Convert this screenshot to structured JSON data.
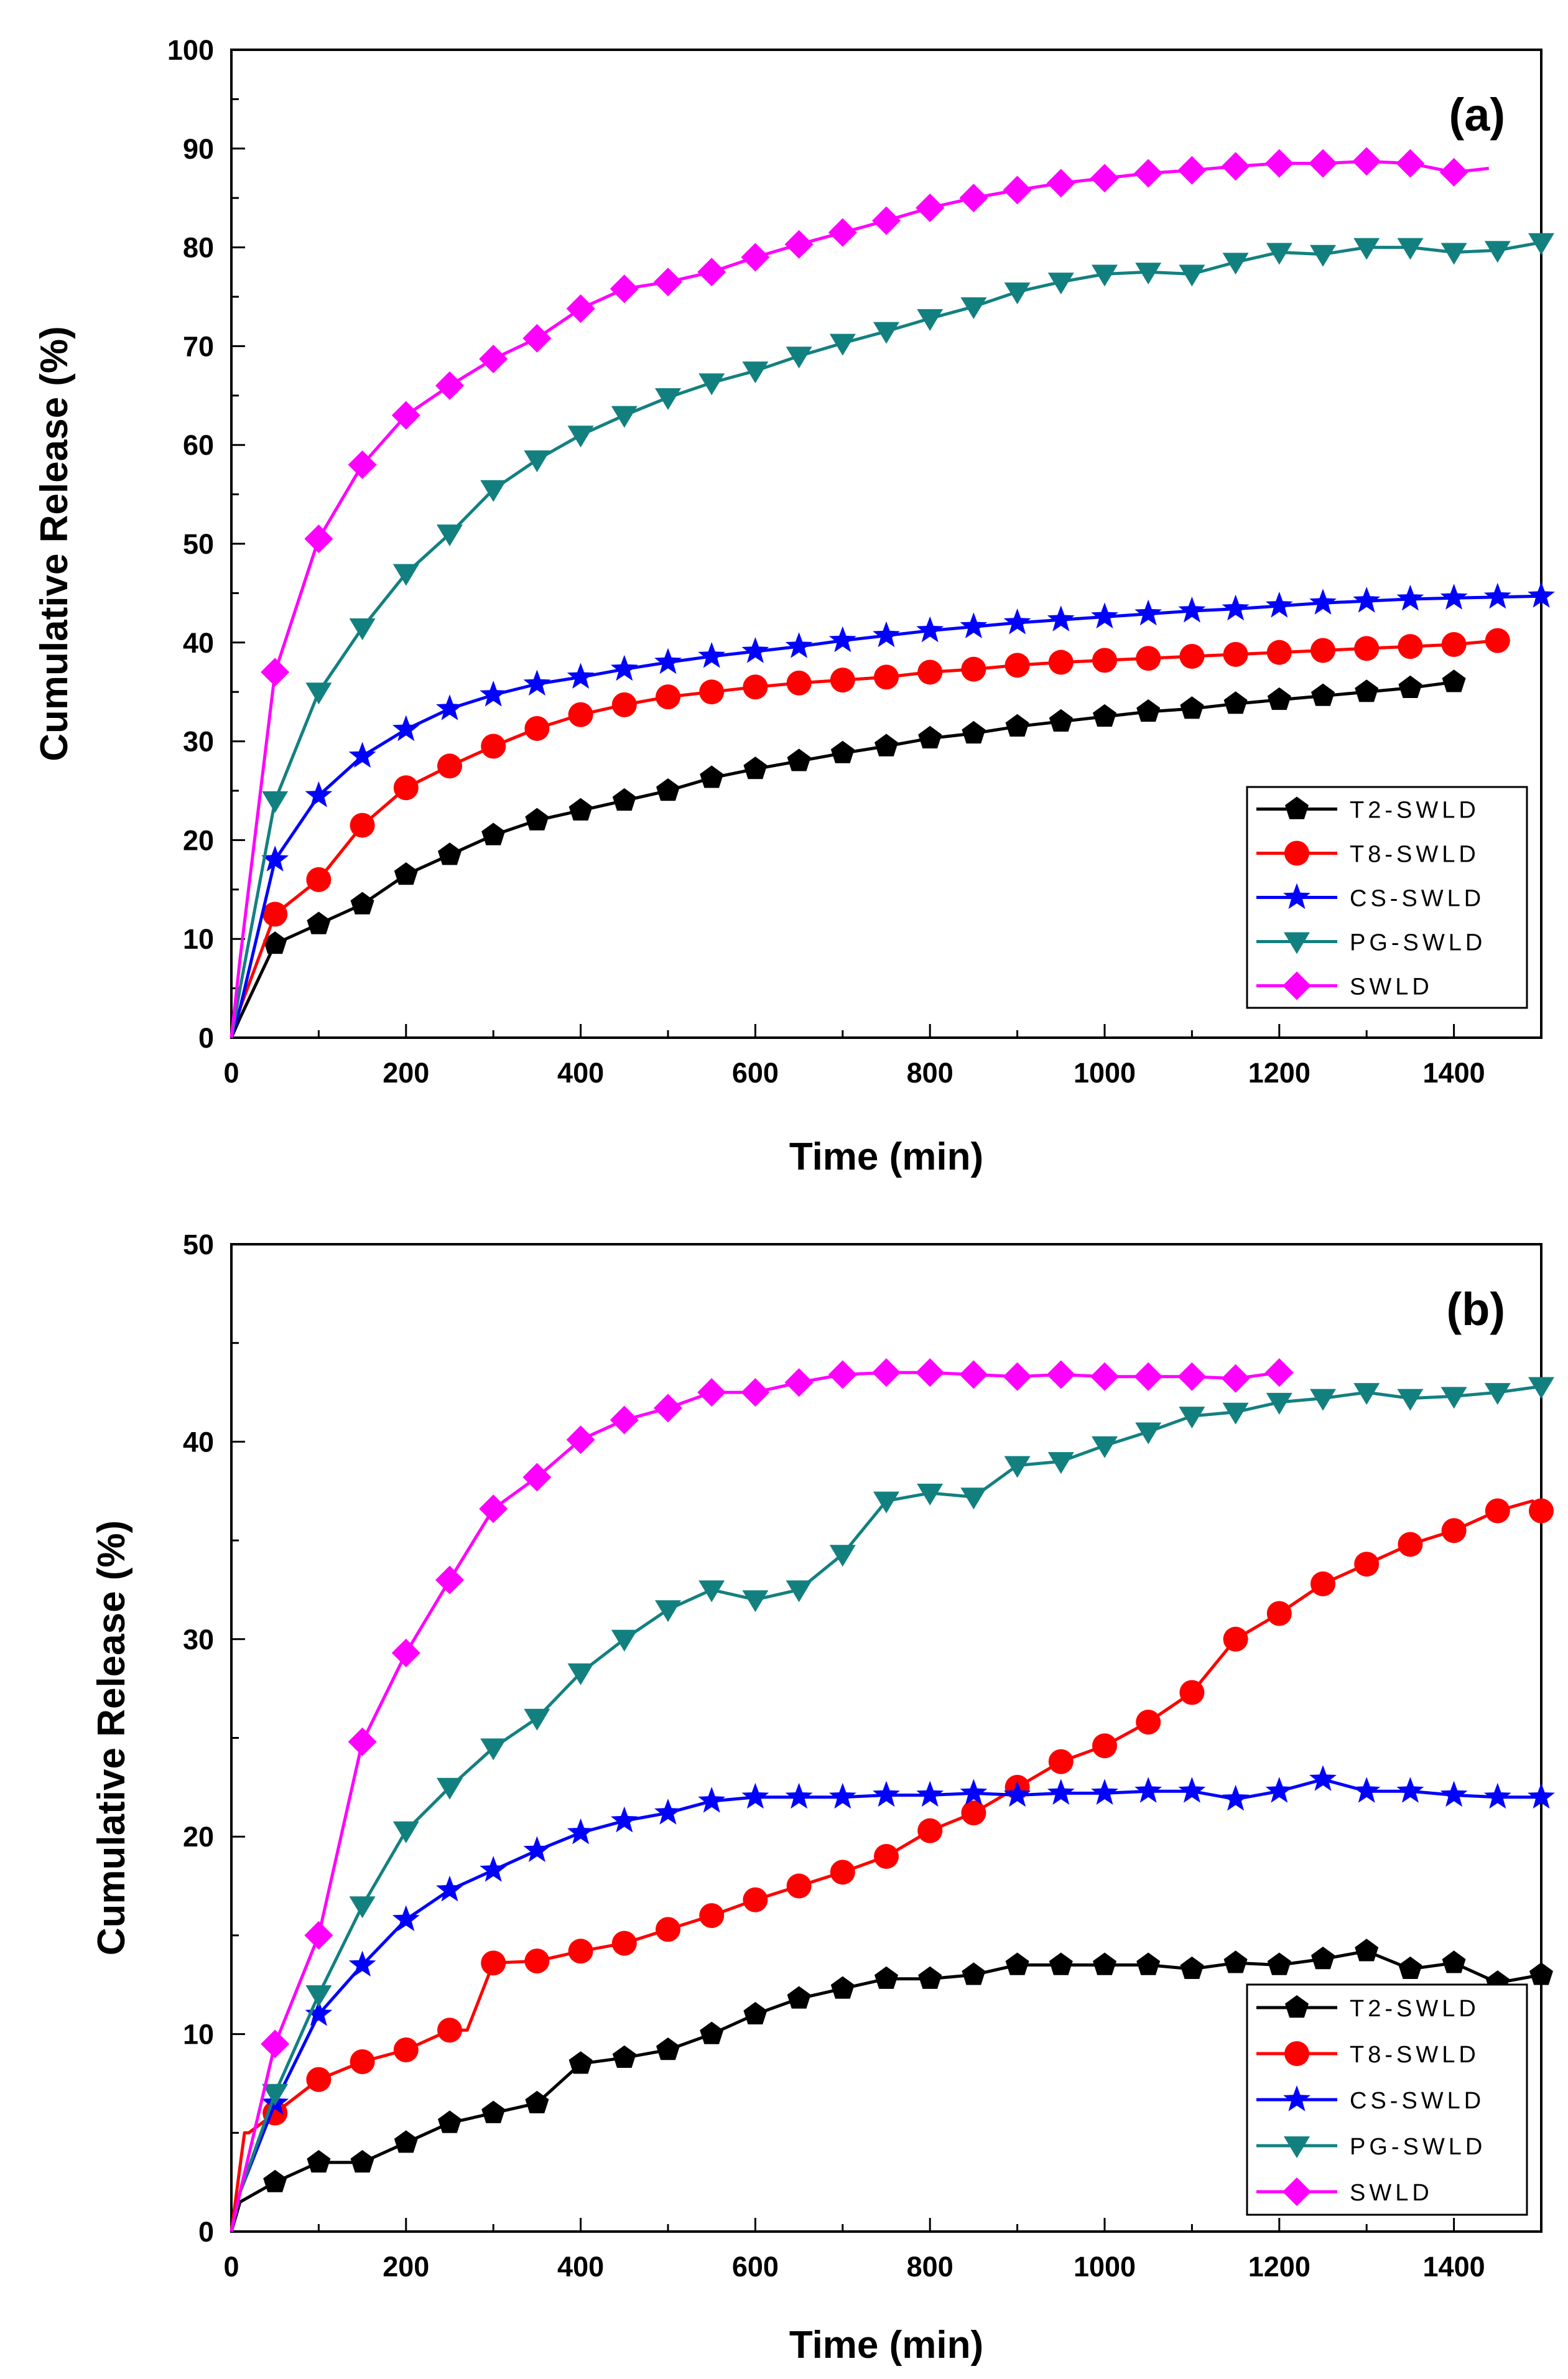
{
  "chart_data": [
    {
      "type": "line",
      "panel_label": "(a)",
      "xlabel": "Time (min)",
      "ylabel": "Cumulative Release (%)",
      "xlim": [
        0,
        1500
      ],
      "ylim": [
        0,
        100
      ],
      "x_ticks": [
        0,
        200,
        400,
        600,
        800,
        1000,
        1200,
        1400
      ],
      "y_ticks": [
        0,
        10,
        20,
        30,
        40,
        50,
        60,
        70,
        80,
        90,
        100
      ],
      "grid": false,
      "legend_position": "bottom-right",
      "series": [
        {
          "name": "T2-SWLD",
          "color": "#000000",
          "marker": "pentagon",
          "x": [
            0,
            10,
            50,
            100,
            150,
            200,
            250,
            300,
            350,
            400,
            450,
            500,
            550,
            600,
            650,
            700,
            750,
            800,
            850,
            900,
            950,
            1000,
            1050,
            1100,
            1150,
            1200,
            1250,
            1300,
            1350,
            1400
          ],
          "y": [
            0,
            2,
            9.5,
            11.5,
            13.5,
            16.5,
            18.5,
            20.5,
            22,
            23,
            24,
            25,
            26.3,
            27.2,
            28,
            28.8,
            29.5,
            30.3,
            30.8,
            31.5,
            32,
            32.5,
            33,
            33.3,
            33.8,
            34.2,
            34.6,
            35,
            35.4,
            36
          ]
        },
        {
          "name": "T8-SWLD",
          "color": "#ff0000",
          "marker": "circle",
          "x": [
            0,
            10,
            50,
            100,
            150,
            200,
            250,
            300,
            350,
            400,
            450,
            500,
            550,
            600,
            650,
            700,
            750,
            800,
            850,
            900,
            950,
            1000,
            1050,
            1100,
            1150,
            1200,
            1250,
            1300,
            1350,
            1400,
            1450
          ],
          "y": [
            0,
            3,
            12.5,
            16,
            21.5,
            25.3,
            27.5,
            29.5,
            31.3,
            32.7,
            33.7,
            34.5,
            35,
            35.5,
            35.9,
            36.2,
            36.5,
            37,
            37.3,
            37.7,
            38,
            38.2,
            38.4,
            38.6,
            38.8,
            39,
            39.2,
            39.4,
            39.6,
            39.8,
            40.2
          ]
        },
        {
          "name": "CS-SWLD",
          "color": "#0000ff",
          "marker": "star",
          "x": [
            0,
            10,
            50,
            100,
            150,
            200,
            250,
            300,
            350,
            400,
            450,
            500,
            550,
            600,
            650,
            700,
            750,
            800,
            850,
            900,
            950,
            1000,
            1050,
            1100,
            1150,
            1200,
            1250,
            1300,
            1350,
            1400,
            1450,
            1500
          ],
          "y": [
            0,
            3,
            18,
            24.5,
            28.5,
            31.2,
            33.3,
            34.7,
            35.8,
            36.5,
            37.3,
            38,
            38.6,
            39.1,
            39.6,
            40.2,
            40.7,
            41.2,
            41.6,
            42,
            42.3,
            42.6,
            42.9,
            43.2,
            43.4,
            43.7,
            44,
            44.2,
            44.4,
            44.5,
            44.6,
            44.7
          ]
        },
        {
          "name": "PG-SWLD",
          "color": "#138080",
          "marker": "triangle-down",
          "x": [
            0,
            10,
            50,
            100,
            150,
            200,
            250,
            300,
            350,
            400,
            450,
            500,
            550,
            600,
            650,
            700,
            750,
            800,
            850,
            900,
            950,
            1000,
            1050,
            1100,
            1150,
            1200,
            1250,
            1300,
            1350,
            1400,
            1450,
            1500
          ],
          "y": [
            0,
            5,
            24,
            35,
            41.5,
            47,
            51,
            55.5,
            58.5,
            61,
            63,
            64.8,
            66.3,
            67.5,
            69,
            70.3,
            71.5,
            72.8,
            74,
            75.5,
            76.5,
            77.3,
            77.5,
            77.3,
            78.5,
            79.5,
            79.3,
            80,
            80,
            79.5,
            79.7,
            80.5
          ]
        },
        {
          "name": "SWLD",
          "color": "#ff00ff",
          "marker": "diamond",
          "x": [
            0,
            10,
            50,
            100,
            150,
            200,
            250,
            300,
            350,
            400,
            450,
            500,
            550,
            600,
            650,
            700,
            750,
            800,
            850,
            900,
            950,
            1000,
            1050,
            1100,
            1150,
            1200,
            1250,
            1300,
            1350,
            1400,
            1440
          ],
          "y": [
            0,
            8,
            37,
            50.5,
            58,
            63,
            66,
            68.7,
            70.8,
            73.8,
            75.8,
            76.5,
            77.5,
            79,
            80.3,
            81.5,
            82.7,
            84,
            85,
            85.8,
            86.5,
            87,
            87.5,
            87.8,
            88.2,
            88.5,
            88.5,
            88.7,
            88.5,
            87.6,
            88
          ]
        }
      ]
    },
    {
      "type": "line",
      "panel_label": "(b)",
      "xlabel": "Time (min)",
      "ylabel": "Cumulative Release (%)",
      "xlim": [
        0,
        1500
      ],
      "ylim": [
        0,
        50
      ],
      "x_ticks": [
        0,
        200,
        400,
        600,
        800,
        1000,
        1200,
        1400
      ],
      "y_ticks": [
        0,
        10,
        20,
        30,
        40,
        50
      ],
      "grid": false,
      "legend_position": "bottom-right",
      "series": [
        {
          "name": "T2-SWLD",
          "color": "#000000",
          "marker": "pentagon",
          "x": [
            0,
            10,
            50,
            100,
            150,
            200,
            250,
            300,
            350,
            400,
            450,
            500,
            550,
            600,
            650,
            700,
            750,
            800,
            850,
            900,
            950,
            1000,
            1050,
            1100,
            1150,
            1200,
            1250,
            1300,
            1350,
            1400,
            1450,
            1500
          ],
          "y": [
            0,
            1.5,
            2.5,
            3.5,
            3.5,
            4.5,
            5.5,
            6,
            6.5,
            8.5,
            8.8,
            9.2,
            10,
            11,
            11.8,
            12.3,
            12.8,
            12.8,
            13,
            13.5,
            13.5,
            13.5,
            13.5,
            13.3,
            13.6,
            13.5,
            13.8,
            14.2,
            13.3,
            13.6,
            12.6,
            13
          ]
        },
        {
          "name": "T8-SWLD",
          "color": "#ff0000",
          "marker": "circle",
          "x": [
            0,
            15,
            20,
            50,
            100,
            150,
            200,
            250,
            270,
            300,
            350,
            400,
            450,
            500,
            550,
            600,
            650,
            700,
            750,
            800,
            850,
            900,
            950,
            1000,
            1050,
            1100,
            1150,
            1200,
            1250,
            1300,
            1350,
            1400,
            1450,
            1490,
            1500
          ],
          "y": [
            0,
            5,
            5,
            6,
            7.7,
            8.6,
            9.2,
            10.2,
            10.2,
            13.6,
            13.7,
            14.2,
            14.6,
            15.3,
            16,
            16.8,
            17.5,
            18.2,
            19,
            20.3,
            21.2,
            22.5,
            23.8,
            24.6,
            25.8,
            27.3,
            30,
            31.3,
            32.8,
            33.8,
            34.8,
            35.5,
            36.5,
            37,
            36.5
          ]
        },
        {
          "name": "CS-SWLD",
          "color": "#0000ff",
          "marker": "star",
          "x": [
            0,
            10,
            50,
            100,
            150,
            200,
            250,
            300,
            350,
            400,
            450,
            500,
            550,
            600,
            650,
            700,
            750,
            800,
            850,
            900,
            950,
            1000,
            1050,
            1100,
            1150,
            1200,
            1250,
            1300,
            1350,
            1400,
            1450,
            1500
          ],
          "y": [
            0,
            2,
            6.5,
            11,
            13.5,
            15.8,
            17.3,
            18.3,
            19.3,
            20.2,
            20.8,
            21.2,
            21.8,
            22,
            22,
            22,
            22.1,
            22.1,
            22.2,
            22.1,
            22.2,
            22.2,
            22.3,
            22.3,
            21.9,
            22.3,
            22.9,
            22.3,
            22.3,
            22.1,
            22,
            22
          ]
        },
        {
          "name": "PG-SWLD",
          "color": "#138080",
          "marker": "triangle-down",
          "x": [
            0,
            10,
            50,
            100,
            150,
            200,
            250,
            300,
            350,
            400,
            450,
            500,
            550,
            600,
            650,
            700,
            750,
            800,
            850,
            900,
            950,
            1000,
            1050,
            1100,
            1150,
            1200,
            1250,
            1300,
            1350,
            1400,
            1450,
            1500
          ],
          "y": [
            0,
            2,
            7,
            12,
            16.5,
            20.3,
            22.5,
            24.5,
            26,
            28.3,
            30,
            31.5,
            32.5,
            32,
            32.5,
            34.3,
            37,
            37.4,
            37.2,
            38.8,
            39,
            39.8,
            40.5,
            41.3,
            41.5,
            42,
            42.2,
            42.5,
            42.2,
            42.3,
            42.5,
            42.8
          ]
        },
        {
          "name": "SWLD",
          "color": "#ff00ff",
          "marker": "diamond",
          "x": [
            0,
            10,
            50,
            100,
            150,
            200,
            250,
            300,
            350,
            400,
            450,
            500,
            550,
            600,
            650,
            700,
            750,
            800,
            850,
            900,
            950,
            1000,
            1050,
            1100,
            1150,
            1200
          ],
          "y": [
            0,
            2,
            9.5,
            15,
            24.8,
            29.3,
            33,
            36.6,
            38.2,
            40.1,
            41.1,
            41.7,
            42.5,
            42.5,
            43,
            43.4,
            43.5,
            43.5,
            43.4,
            43.3,
            43.4,
            43.3,
            43.3,
            43.3,
            43.2,
            43.5
          ]
        }
      ]
    }
  ]
}
